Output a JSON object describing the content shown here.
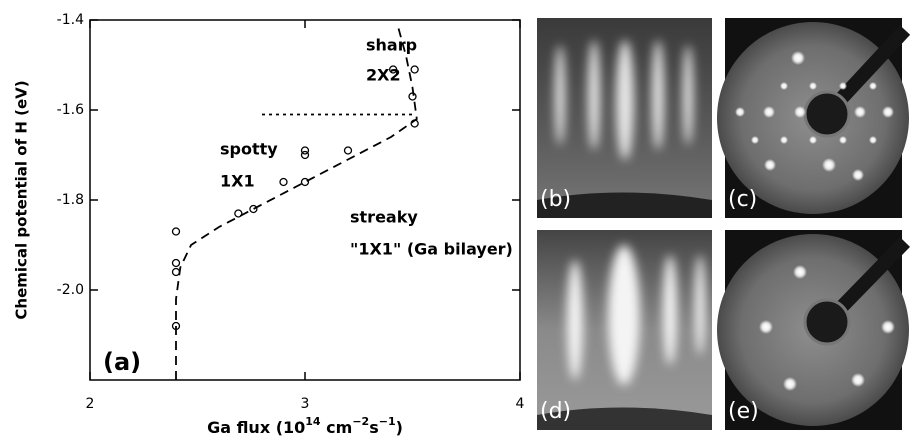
{
  "chart_data": {
    "type": "scatter",
    "ylabel": "Chemical potential of H (eV)",
    "xlabel_parts": [
      {
        "text": "Ga flux (10"
      },
      {
        "text": "14",
        "sup": true
      },
      {
        "text": " cm"
      },
      {
        "text": "−2",
        "sup": true
      },
      {
        "text": "s"
      },
      {
        "text": "−1",
        "sup": true
      },
      {
        "text": ")"
      }
    ],
    "xlim": [
      2,
      4
    ],
    "ylim": [
      -2.2,
      -1.4
    ],
    "xticks": [
      2,
      3,
      4
    ],
    "yticks": [
      -1.4,
      -1.6,
      -1.8,
      {
        "value": -2,
        "label": "-2.0"
      }
    ],
    "series": [
      {
        "style": "markers",
        "color": "#000000",
        "x": [
          3.41,
          3.51,
          3.5,
          3.51,
          3.0,
          3.0,
          3.2,
          2.9,
          3.0,
          2.76,
          2.69,
          2.4,
          2.4,
          2.4,
          2.4
        ],
        "values": [
          -1.51,
          -1.51,
          -1.57,
          -1.63,
          -1.69,
          -1.7,
          -1.69,
          -1.76,
          -1.76,
          -1.82,
          -1.83,
          -1.87,
          -1.94,
          -1.96,
          -2.08
        ]
      },
      {
        "style": "dashed",
        "color": "#000000",
        "x": [
          2.4,
          2.4,
          2.42,
          2.47,
          2.6,
          2.8,
          3.0,
          3.2,
          3.4,
          3.52,
          3.5,
          3.47,
          3.43
        ],
        "values": [
          -2.2,
          -2.02,
          -1.95,
          -1.9,
          -1.86,
          -1.81,
          -1.76,
          -1.71,
          -1.66,
          -1.62,
          -1.55,
          -1.48,
          -1.41
        ]
      },
      {
        "style": "dotted",
        "color": "#000000",
        "x": [
          2.8,
          3.51
        ],
        "values": [
          -1.61,
          -1.61
        ]
      }
    ],
    "annotations": [
      "sharp",
      "2X2",
      "spotty",
      "1X1",
      "streaky",
      "\"1X1\" (Ga bilayer)",
      "(a)"
    ]
  },
  "panels": [
    {
      "label": "(b)"
    },
    {
      "label": "(c)"
    },
    {
      "label": "(d)"
    },
    {
      "label": "(e)"
    }
  ]
}
